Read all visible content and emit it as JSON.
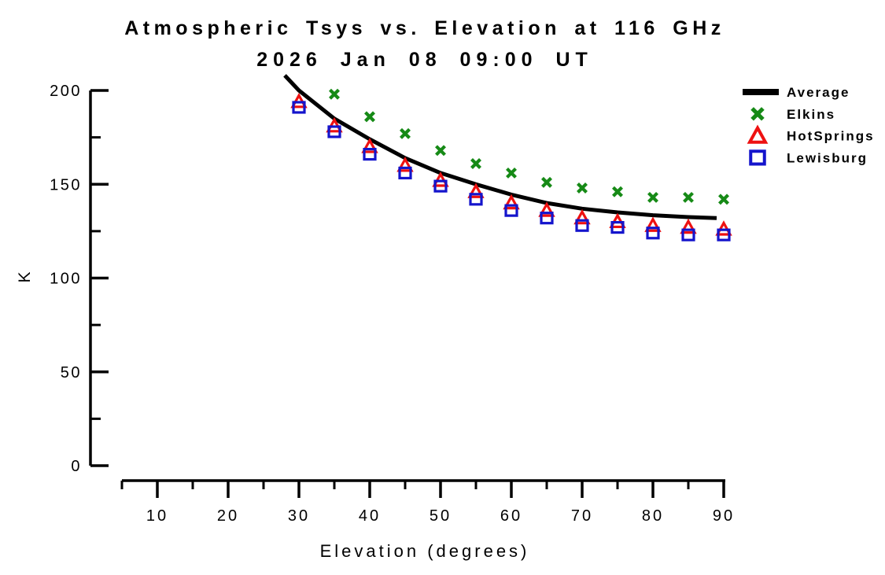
{
  "chart_data": {
    "type": "scatter",
    "title": "Atmospheric Tsys vs. Elevation at 116 GHz",
    "subtitle": "2026 Jan 08 09:00 UT",
    "xlabel": "Elevation (degrees)",
    "ylabel": "K",
    "grid": false,
    "background": "#ffffff",
    "axis_color": "#000000",
    "xlim": [
      5,
      92
    ],
    "ylim": [
      0,
      200
    ],
    "axes": {
      "x": {
        "major_ticks": [
          10,
          20,
          30,
          40,
          50,
          60,
          70,
          80,
          90
        ],
        "minor_ticks": [
          5,
          15,
          25,
          35,
          45,
          55,
          65,
          75,
          85
        ]
      },
      "y": {
        "major_ticks": [
          0,
          50,
          100,
          150,
          200
        ],
        "minor_ticks": [
          25,
          75,
          125,
          175
        ]
      }
    },
    "legend_position": "top-right",
    "series": [
      {
        "name": "Average",
        "kind": "line",
        "color": "#000000",
        "line_width": 5,
        "curve_points": [
          [
            28,
            208
          ],
          [
            30,
            200
          ],
          [
            35,
            185
          ],
          [
            40,
            174
          ],
          [
            45,
            164
          ],
          [
            50,
            156
          ],
          [
            55,
            150
          ],
          [
            60,
            144.5
          ],
          [
            65,
            140
          ],
          [
            70,
            137
          ],
          [
            75,
            135
          ],
          [
            80,
            133.5
          ],
          [
            85,
            132.5
          ],
          [
            89,
            132
          ]
        ]
      },
      {
        "name": "Elkins",
        "kind": "scatter",
        "marker": "x",
        "color": "#168a16",
        "x": [
          35,
          40,
          45,
          50,
          55,
          60,
          65,
          70,
          75,
          80,
          85,
          90
        ],
        "y": [
          198,
          186,
          177,
          168,
          161,
          156,
          151,
          148,
          146,
          143,
          143,
          142
        ]
      },
      {
        "name": "HotSprings",
        "kind": "scatter",
        "marker": "triangle",
        "color": "#ee1111",
        "x": [
          30,
          35,
          40,
          45,
          50,
          55,
          60,
          65,
          70,
          75,
          80,
          85,
          90
        ],
        "y": [
          194,
          181,
          170,
          160,
          152,
          146,
          140,
          136,
          132,
          130,
          128,
          127,
          126
        ]
      },
      {
        "name": "Lewisburg",
        "kind": "scatter",
        "marker": "square",
        "color": "#1414cc",
        "x": [
          30,
          35,
          40,
          45,
          50,
          55,
          60,
          65,
          70,
          75,
          80,
          85,
          90
        ],
        "y": [
          191,
          178,
          166,
          156,
          149,
          142,
          136,
          132,
          128,
          127,
          124,
          123,
          123
        ]
      }
    ]
  }
}
